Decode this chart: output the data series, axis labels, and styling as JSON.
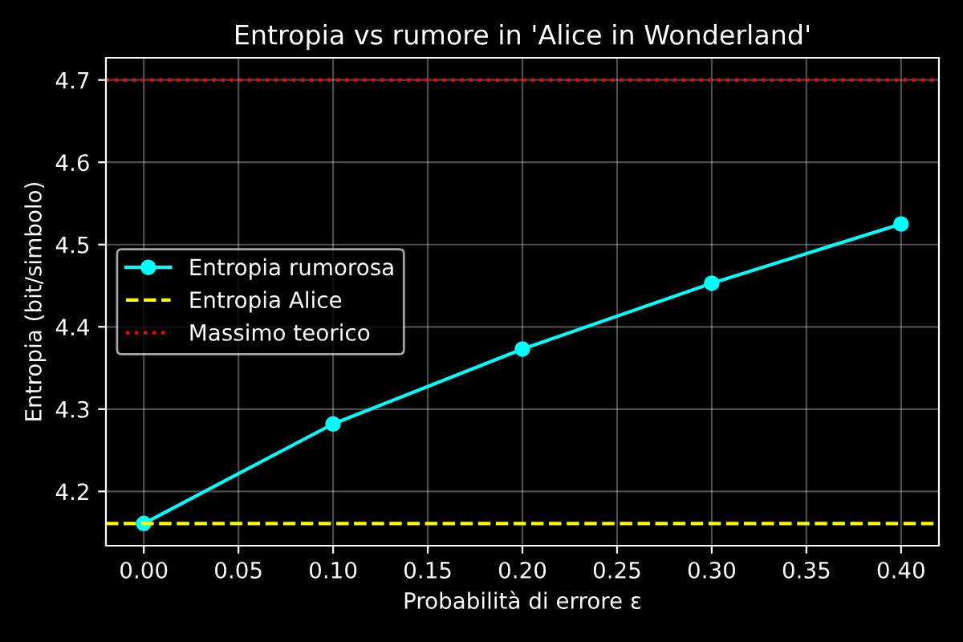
{
  "chart_data": {
    "type": "line",
    "title": "Entropia vs rumore in 'Alice in Wonderland'",
    "xlabel": "Probabilità di errore ε",
    "ylabel": "Entropia (bit/simbolo)",
    "x": [
      0.0,
      0.1,
      0.2,
      0.3,
      0.4
    ],
    "series": [
      {
        "name": "Entropia rumorosa",
        "color": "#00ffff",
        "values": [
          4.161,
          4.282,
          4.373,
          4.453,
          4.525
        ]
      }
    ],
    "ref_lines": [
      {
        "axis": "y",
        "value": 4.161,
        "label": "Entropia Alice",
        "color": "#ffff00",
        "line_style": "dashed"
      },
      {
        "axis": "y",
        "value": 4.7,
        "label": "Massimo teorico",
        "color": "#ff0000",
        "line_style": "dotted"
      }
    ],
    "xlim": [
      -0.02,
      0.42
    ],
    "ylim": [
      4.134,
      4.727
    ],
    "xticks": [
      {
        "value": 0,
        "label": "0.00"
      },
      {
        "value": 0.05,
        "label": "0.05"
      },
      {
        "value": 0.1,
        "label": "0.10"
      },
      {
        "value": 0.15,
        "label": "0.15"
      },
      {
        "value": 0.2,
        "label": "0.20"
      },
      {
        "value": 0.25,
        "label": "0.25"
      },
      {
        "value": 0.3,
        "label": "0.30"
      },
      {
        "value": 0.35,
        "label": "0.35"
      },
      {
        "value": 0.4,
        "label": "0.40"
      }
    ],
    "yticks": [
      4.2,
      4.3,
      4.4,
      4.5,
      4.6,
      4.7
    ],
    "grid": true,
    "legend": "center left",
    "marker": "circle",
    "line_style": "solid"
  }
}
